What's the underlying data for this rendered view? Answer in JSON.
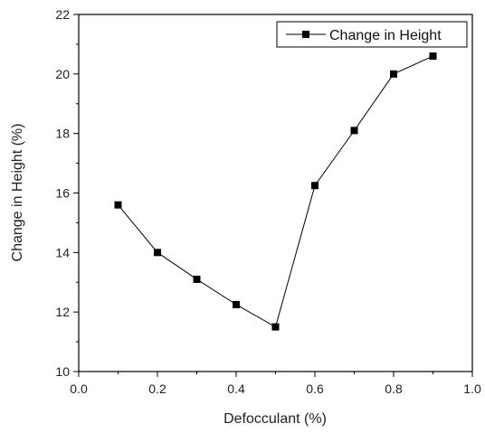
{
  "chart_data": {
    "type": "line",
    "xlabel": "Defocculant (%)",
    "ylabel": "Change in Height (%)",
    "xlim": [
      0.0,
      1.0
    ],
    "ylim": [
      10,
      22
    ],
    "xticks": [
      "0.0",
      "0.2",
      "0.4",
      "0.6",
      "0.8",
      "1.0"
    ],
    "yticks": [
      "10",
      "12",
      "14",
      "16",
      "18",
      "20",
      "22"
    ],
    "grid": false,
    "legend_placement": "top-right",
    "marker": "square",
    "series": [
      {
        "name": "Change in Height",
        "color": "#000000",
        "x": [
          0.1,
          0.2,
          0.3,
          0.4,
          0.5,
          0.6,
          0.7,
          0.8,
          0.9
        ],
        "y": [
          15.6,
          14.0,
          13.1,
          12.25,
          11.5,
          16.25,
          18.1,
          20.0,
          20.6
        ]
      }
    ]
  }
}
